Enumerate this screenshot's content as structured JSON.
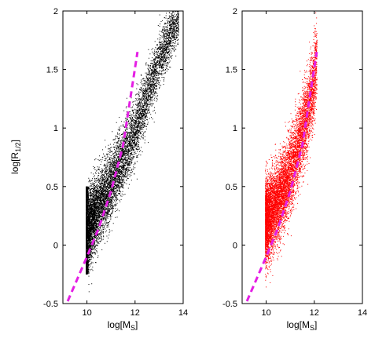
{
  "chart_data": [
    {
      "type": "scatter",
      "panel": "left",
      "point_color": "#000000",
      "xlim": [
        9,
        14
      ],
      "ylim": [
        -0.5,
        2
      ],
      "xticks": [
        10,
        12,
        14
      ],
      "yticks": [
        -0.5,
        0,
        0.5,
        1,
        1.5,
        2
      ],
      "x_tick_labels": [
        "10",
        "12",
        "14"
      ],
      "y_tick_labels": [
        "-0.5",
        "0",
        "0.5",
        "1",
        "1.5",
        "2"
      ],
      "xlabel": {
        "base": "log[M",
        "sub": "S",
        "tail": "]"
      },
      "ylabel": {
        "base": "log[R",
        "sub": "1/2",
        "tail": "]"
      },
      "point_cloud": {
        "ridge": [
          [
            10.0,
            0.12
          ],
          [
            10.5,
            0.33
          ],
          [
            11.0,
            0.52
          ],
          [
            11.5,
            0.74
          ],
          [
            12.0,
            0.98
          ],
          [
            12.5,
            1.28
          ],
          [
            13.0,
            1.58
          ],
          [
            13.5,
            1.82
          ],
          [
            13.8,
            1.95
          ]
        ],
        "x_min": 9.95,
        "x_max": 13.8,
        "scatter_dex": 0.16,
        "hard_left_edge_x": 10.0,
        "left_edge_y_range": [
          -0.25,
          0.5
        ]
      },
      "reference_line": {
        "color": "#e41ee4",
        "style": "dashed",
        "points": [
          [
            9.2,
            -0.48
          ],
          [
            10.0,
            -0.1
          ],
          [
            10.5,
            0.15
          ],
          [
            11.0,
            0.46
          ],
          [
            11.5,
            0.85
          ],
          [
            12.1,
            1.65
          ]
        ]
      }
    },
    {
      "type": "scatter",
      "panel": "right",
      "point_color": "#ff0000",
      "xlim": [
        9,
        14
      ],
      "ylim": [
        -0.5,
        2
      ],
      "xticks": [
        10,
        12,
        14
      ],
      "yticks": [
        -0.5,
        0,
        0.5,
        1,
        1.5,
        2
      ],
      "x_tick_labels": [
        "10",
        "12",
        "14"
      ],
      "y_tick_labels": [
        "-0.5",
        "0",
        "0.5",
        "1",
        "1.5",
        "2"
      ],
      "xlabel": {
        "base": "log[M",
        "sub": "S",
        "tail": "]"
      },
      "point_cloud": {
        "ridge": [
          [
            10.0,
            0.2
          ],
          [
            10.5,
            0.38
          ],
          [
            11.0,
            0.62
          ],
          [
            11.5,
            0.95
          ],
          [
            11.9,
            1.3
          ],
          [
            12.1,
            1.6
          ]
        ],
        "x_min": 9.95,
        "x_max": 12.1,
        "scatter_dex": 0.17
      },
      "reference_line": {
        "color": "#e41ee4",
        "style": "dashed",
        "points": [
          [
            9.2,
            -0.48
          ],
          [
            10.0,
            -0.1
          ],
          [
            10.5,
            0.15
          ],
          [
            11.0,
            0.46
          ],
          [
            11.5,
            0.85
          ],
          [
            12.1,
            1.65
          ]
        ]
      }
    }
  ]
}
